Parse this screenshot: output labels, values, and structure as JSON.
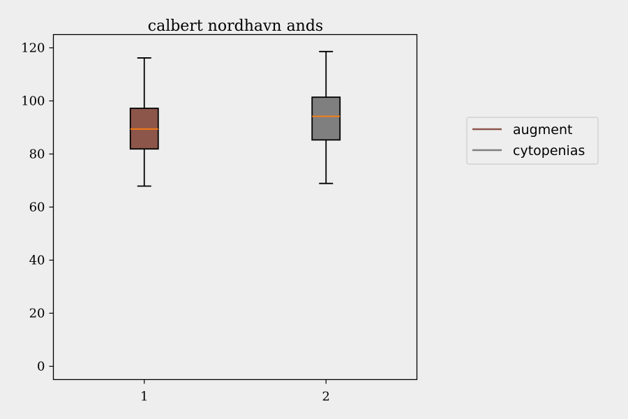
{
  "chart_data": {
    "type": "box",
    "title": "calbert nordhavn ands",
    "xlabel": "",
    "ylabel": "",
    "ylim": [
      -5,
      125
    ],
    "yticks": [
      0,
      20,
      40,
      60,
      80,
      100,
      120
    ],
    "categories": [
      "1",
      "2"
    ],
    "grid": false,
    "legend_position": "right-outside",
    "median_color": "#ff7f0e",
    "series": [
      {
        "name": "augment",
        "color": "#8c564b",
        "whisker_low": 67.9,
        "q1": 81.9,
        "median": 89.4,
        "q3": 97.2,
        "whisker_high": 116.2
      },
      {
        "name": "cytopenias",
        "color": "#7f7f7f",
        "whisker_low": 68.9,
        "q1": 85.3,
        "median": 94.2,
        "q3": 101.4,
        "whisker_high": 118.6
      }
    ]
  }
}
